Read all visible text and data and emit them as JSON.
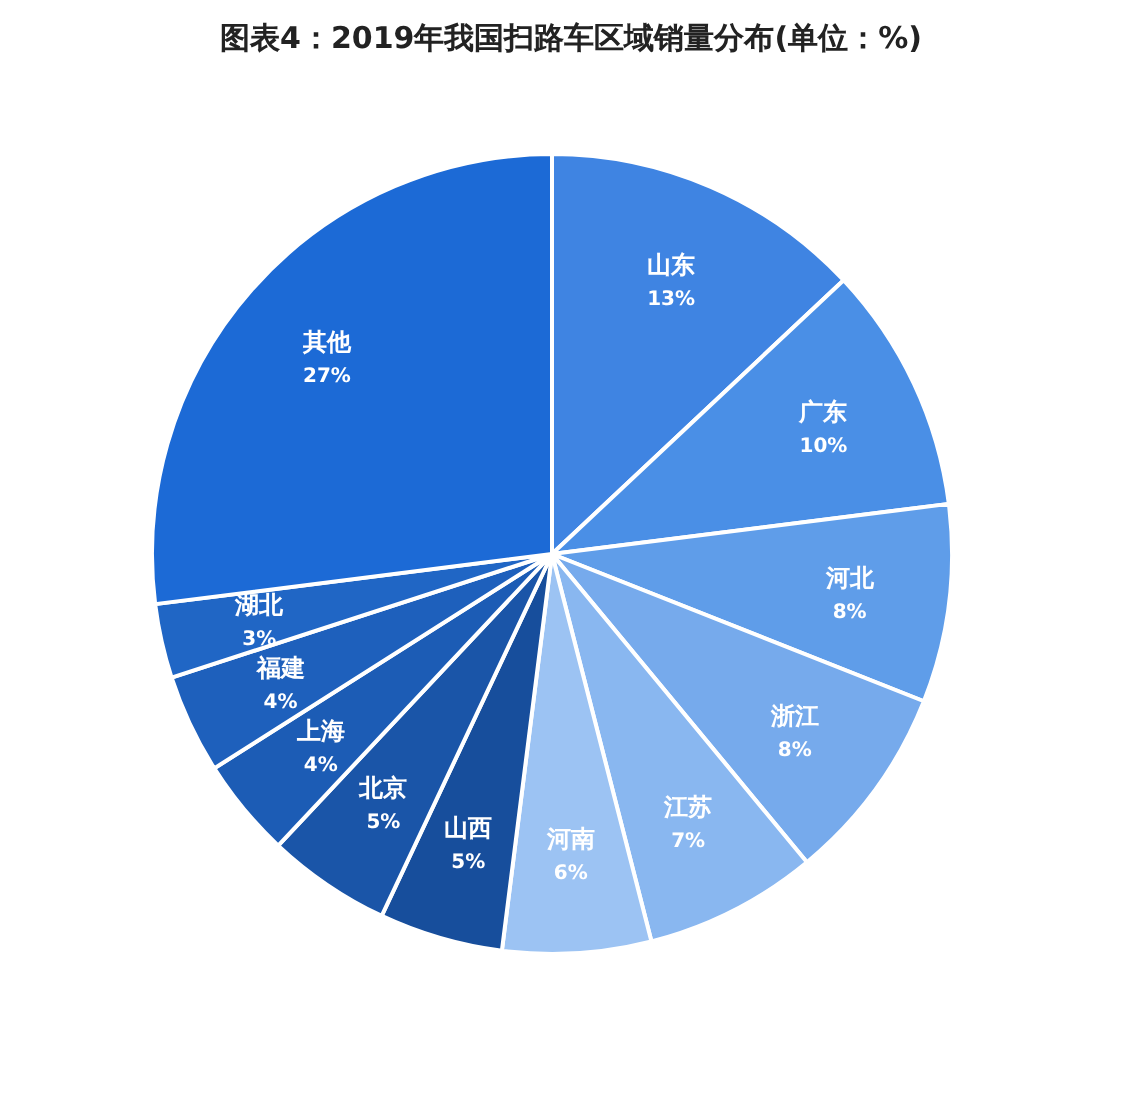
{
  "chart_data": {
    "type": "pie",
    "title": "图表4：2019年我国扫路车区域销量分布(单位：%)",
    "categories": [
      "山东",
      "广东",
      "河北",
      "浙江",
      "江苏",
      "河南",
      "山西",
      "北京",
      "上海",
      "福建",
      "湖北",
      "其他"
    ],
    "values": [
      13,
      10,
      8,
      8,
      7,
      6,
      5,
      5,
      4,
      4,
      3,
      27
    ],
    "value_labels": [
      "13%",
      "10%",
      "8%",
      "8%",
      "7%",
      "6%",
      "5%",
      "5%",
      "4%",
      "4%",
      "3%",
      "27%"
    ],
    "colors": [
      "#3f84e2",
      "#4a8fe6",
      "#5f9de9",
      "#76aaec",
      "#89b7f0",
      "#9cc3f3",
      "#174e9c",
      "#1a55a8",
      "#1c5cb5",
      "#1e60bc",
      "#2066c5",
      "#1c6ad6"
    ]
  }
}
